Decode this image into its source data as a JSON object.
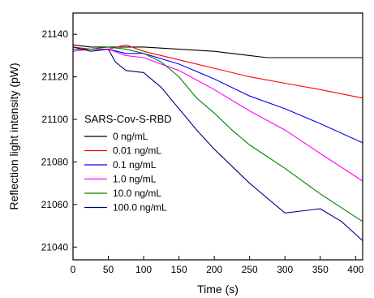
{
  "chart_data": {
    "type": "line",
    "title": "",
    "xlabel": "Time (s)",
    "ylabel": "Reflection light intensity (pW)",
    "xlim": [
      0,
      410
    ],
    "ylim": [
      21034,
      21150
    ],
    "xticks": [
      0,
      50,
      100,
      150,
      200,
      250,
      300,
      350,
      400
    ],
    "yticks": [
      21040,
      21060,
      21080,
      21100,
      21120,
      21140
    ],
    "legend": {
      "title": "SARS-Cov-S-RBD",
      "position": "center-left"
    },
    "grid": false,
    "series": [
      {
        "name": "0 ng/mL",
        "color": "#000000",
        "x": [
          0,
          25,
          50,
          100,
          150,
          200,
          250,
          275,
          300,
          325,
          350,
          375,
          410
        ],
        "y": [
          21135,
          21134,
          21134,
          21134,
          21133,
          21132,
          21130,
          21129,
          21129,
          21129,
          21129,
          21129,
          21129
        ]
      },
      {
        "name": "0.01 ng/mL",
        "color": "#ff0000",
        "x": [
          0,
          25,
          50,
          75,
          100,
          150,
          200,
          250,
          300,
          350,
          410
        ],
        "y": [
          21134,
          21133,
          21133,
          21135,
          21132,
          21128,
          21124,
          21120,
          21117,
          21114,
          21110
        ]
      },
      {
        "name": "0.1 ng/mL",
        "color": "#0000ff",
        "x": [
          0,
          25,
          50,
          75,
          100,
          150,
          200,
          250,
          300,
          350,
          410
        ],
        "y": [
          21133,
          21133,
          21133,
          21131,
          21131,
          21126,
          21119,
          21111,
          21105,
          21098,
          21089
        ]
      },
      {
        "name": "1.0 ng/mL",
        "color": "#ff00ff",
        "x": [
          0,
          25,
          50,
          75,
          100,
          150,
          200,
          250,
          300,
          350,
          410
        ],
        "y": [
          21132,
          21133,
          21133,
          21130,
          21129,
          21123,
          21114,
          21104,
          21095,
          21084,
          21071
        ]
      },
      {
        "name": "10.0 ng/mL",
        "color": "#008000",
        "x": [
          0,
          25,
          50,
          75,
          100,
          125,
          150,
          175,
          200,
          225,
          250,
          300,
          350,
          410
        ],
        "y": [
          21133,
          21133,
          21134,
          21133,
          21131,
          21127,
          21120,
          21110,
          21103,
          21095,
          21088,
          21077,
          21065,
          21052
        ]
      },
      {
        "name": "100.0 ng/mL",
        "color": "#000080",
        "x": [
          0,
          25,
          50,
          60,
          75,
          100,
          125,
          150,
          175,
          200,
          250,
          300,
          350,
          380,
          410
        ],
        "y": [
          21134,
          21132,
          21133,
          21127,
          21123,
          21122,
          21115,
          21105,
          21095,
          21086,
          21070,
          21056,
          21058,
          21052,
          21043
        ]
      }
    ]
  }
}
